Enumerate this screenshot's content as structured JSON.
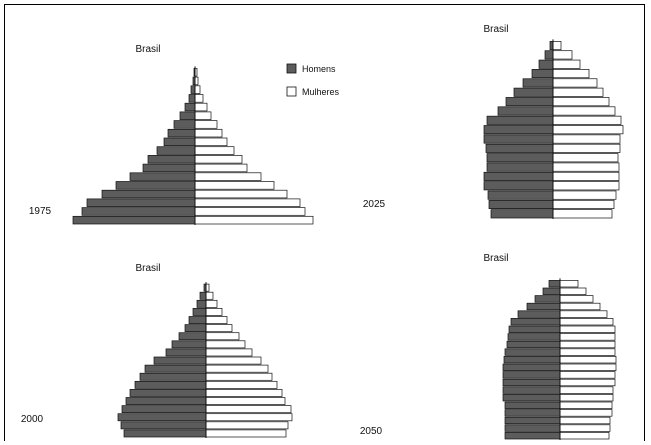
{
  "chart_data": [
    {
      "type": "bar",
      "title": "Brasil",
      "year_label": "1975",
      "series": [
        {
          "name": "Homens",
          "values": [
            122,
            113,
            108,
            93,
            79,
            65,
            52,
            47,
            38,
            31,
            27,
            21,
            15,
            10,
            6,
            4,
            2,
            1
          ]
        },
        {
          "name": "Mulheres",
          "values": [
            118,
            110,
            105,
            92,
            79,
            66,
            52,
            47,
            39,
            32,
            27,
            22,
            16,
            12,
            8,
            5,
            3,
            2
          ]
        }
      ]
    },
    {
      "type": "bar",
      "title": "Brasil",
      "year_label": "2025",
      "series": [
        {
          "name": "Homens",
          "values": [
            62,
            64,
            65,
            69,
            69,
            66,
            66,
            67,
            69,
            69,
            66,
            55,
            47,
            39,
            30,
            21,
            14,
            8,
            3
          ]
        },
        {
          "name": "Mulheres",
          "values": [
            59,
            61,
            63,
            66,
            66,
            66,
            65,
            67,
            67,
            70,
            68,
            62,
            56,
            50,
            44,
            36,
            27,
            19,
            8
          ]
        }
      ]
    },
    {
      "type": "bar",
      "title": "Brasil",
      "year_label": "2000",
      "series": [
        {
          "name": "Homens",
          "values": [
            82,
            85,
            88,
            84,
            80,
            76,
            71,
            66,
            61,
            52,
            40,
            34,
            27,
            21,
            17,
            13,
            9,
            6,
            2
          ]
        },
        {
          "name": "Mulheres",
          "values": [
            80,
            82,
            86,
            85,
            79,
            76,
            71,
            66,
            62,
            55,
            46,
            39,
            33,
            26,
            21,
            16,
            11,
            7,
            3
          ]
        }
      ]
    },
    {
      "type": "bar",
      "title": "Brasil",
      "year_label": "2050",
      "series": [
        {
          "name": "Homens",
          "values": [
            55,
            55,
            55,
            55,
            55,
            57,
            57,
            57,
            57,
            57,
            56,
            55,
            53,
            52,
            51,
            49,
            42,
            33,
            25,
            17,
            11
          ]
        },
        {
          "name": "Mulheres",
          "values": [
            49,
            50,
            50,
            52,
            52,
            53,
            53,
            55,
            55,
            56,
            56,
            55,
            55,
            55,
            55,
            53,
            47,
            40,
            33,
            26,
            18
          ]
        }
      ]
    }
  ],
  "legend": {
    "male_label": "Homens",
    "female_label": "Mulheres",
    "male_color": "#5c5c5c",
    "female_color": "#ffffff"
  }
}
